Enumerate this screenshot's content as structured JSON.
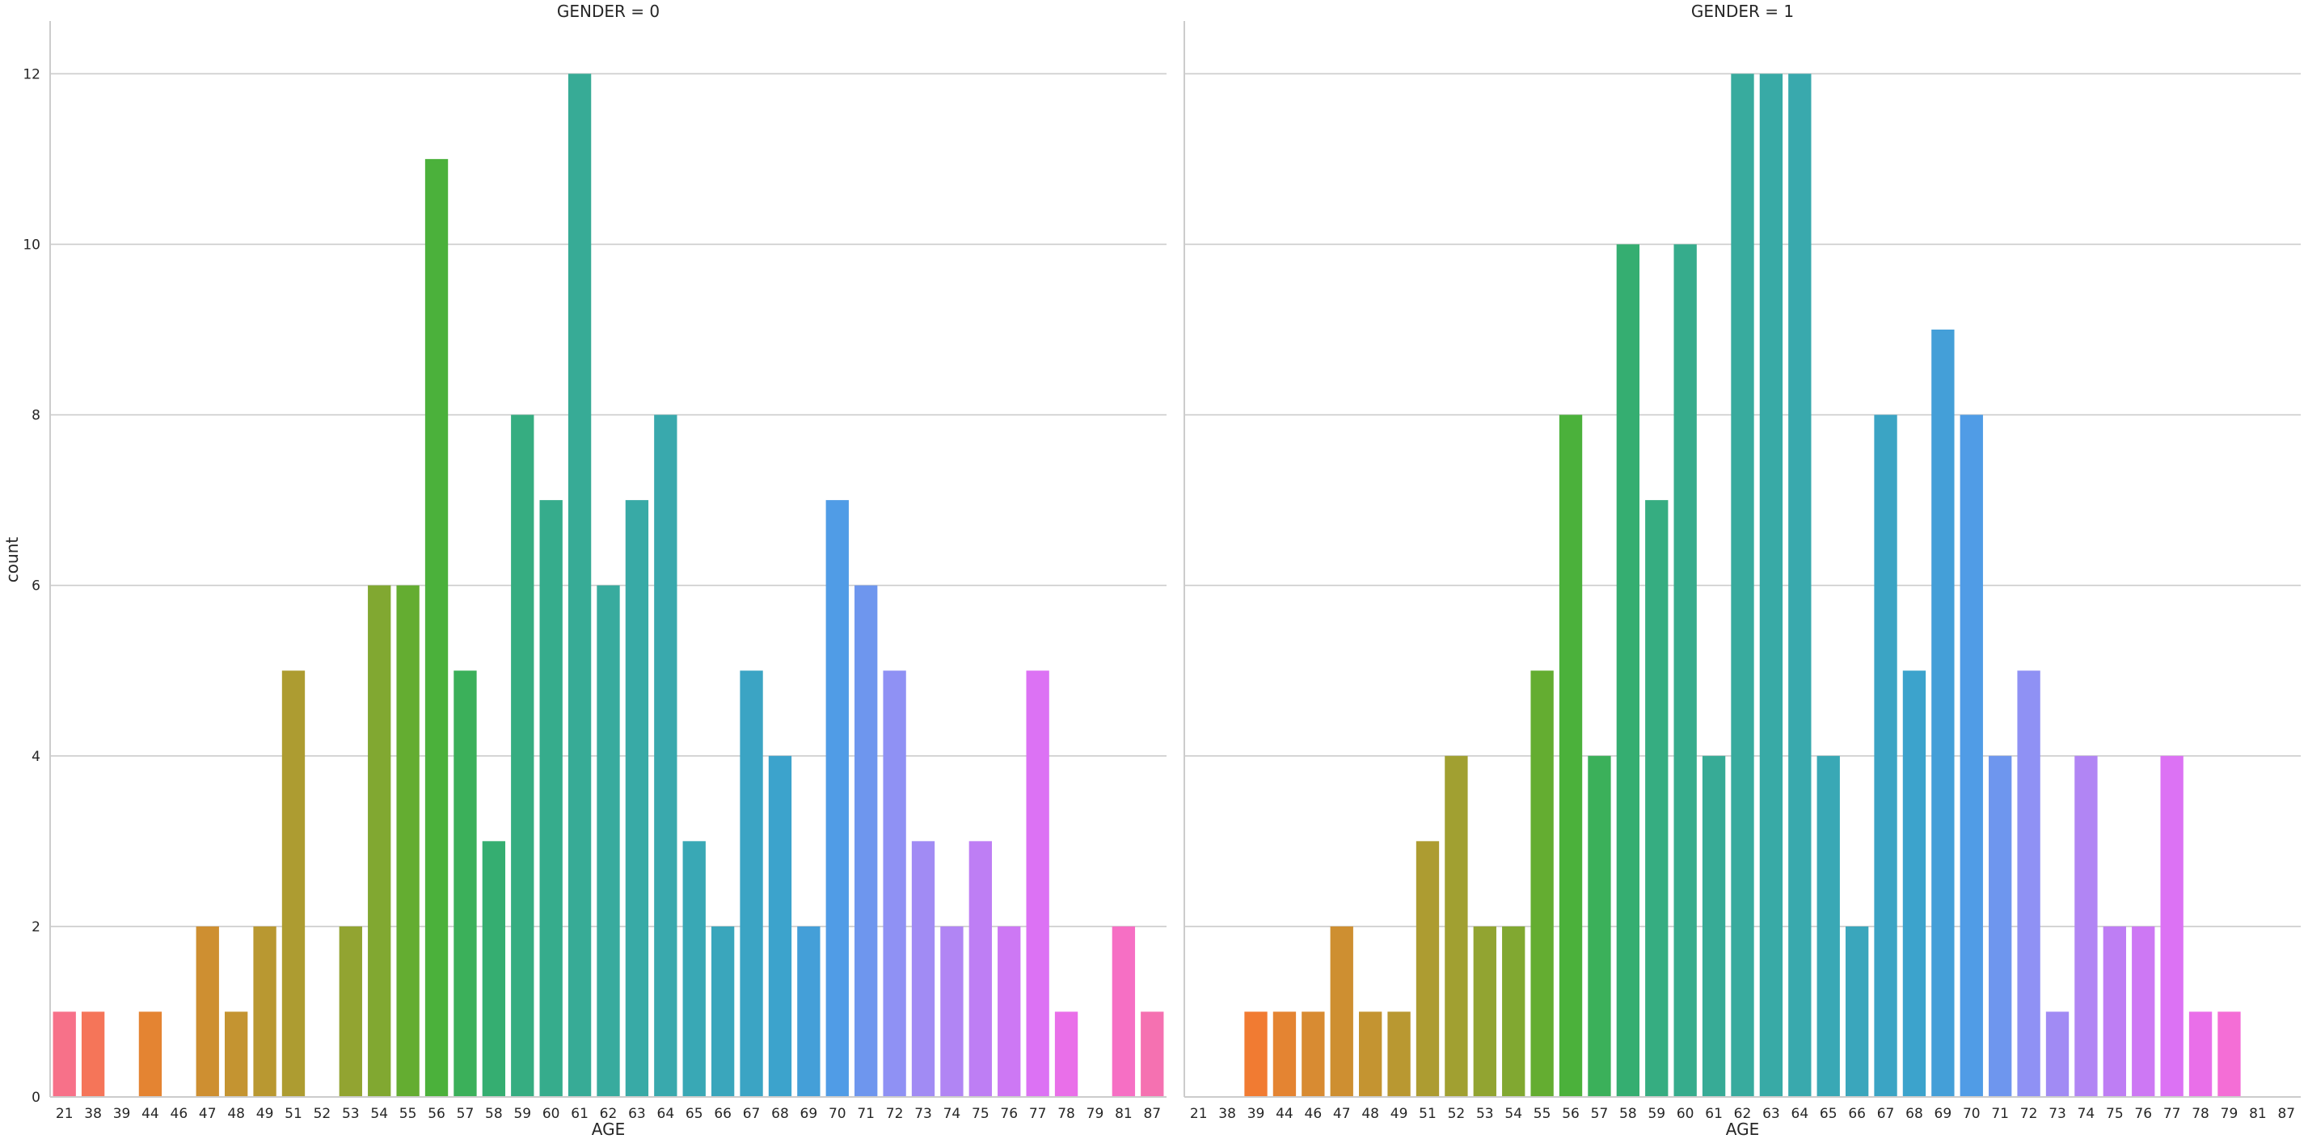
{
  "chart_data": [
    {
      "type": "bar",
      "title": "GENDER = 0",
      "xlabel": "AGE",
      "ylabel": "count",
      "ylim": [
        0,
        12.6
      ],
      "yticks": [
        0,
        2,
        4,
        6,
        8,
        10,
        12
      ],
      "grid": true,
      "categories": [
        "21",
        "38",
        "39",
        "44",
        "46",
        "47",
        "48",
        "49",
        "51",
        "52",
        "53",
        "54",
        "55",
        "56",
        "57",
        "58",
        "59",
        "60",
        "61",
        "62",
        "63",
        "64",
        "65",
        "66",
        "67",
        "68",
        "69",
        "70",
        "71",
        "72",
        "73",
        "74",
        "75",
        "76",
        "77",
        "78",
        "79",
        "81",
        "87"
      ],
      "values": [
        1,
        1,
        0,
        1,
        0,
        2,
        1,
        2,
        5,
        0,
        2,
        6,
        6,
        11,
        5,
        3,
        8,
        7,
        12,
        6,
        7,
        8,
        3,
        2,
        5,
        4,
        2,
        7,
        6,
        5,
        3,
        2,
        3,
        2,
        5,
        1,
        0,
        2,
        1
      ]
    },
    {
      "type": "bar",
      "title": "GENDER = 1",
      "xlabel": "AGE",
      "ylabel": "",
      "ylim": [
        0,
        12.6
      ],
      "yticks": [
        0,
        2,
        4,
        6,
        8,
        10,
        12
      ],
      "grid": true,
      "categories": [
        "21",
        "38",
        "39",
        "44",
        "46",
        "47",
        "48",
        "49",
        "51",
        "52",
        "53",
        "54",
        "55",
        "56",
        "57",
        "58",
        "59",
        "60",
        "61",
        "62",
        "63",
        "64",
        "65",
        "66",
        "67",
        "68",
        "69",
        "70",
        "71",
        "72",
        "73",
        "74",
        "75",
        "76",
        "77",
        "78",
        "79",
        "81",
        "87"
      ],
      "values": [
        0,
        0,
        1,
        1,
        1,
        2,
        1,
        1,
        3,
        4,
        2,
        2,
        5,
        8,
        4,
        10,
        7,
        10,
        4,
        12,
        12,
        12,
        4,
        2,
        8,
        5,
        9,
        8,
        4,
        5,
        1,
        4,
        2,
        2,
        4,
        1,
        1,
        0,
        0
      ]
    }
  ],
  "colors": [
    "#f77189",
    "#f37932",
    "#dc8932",
    "#ca9131",
    "#b69931",
    "#a0a031",
    "#85a731",
    "#50b131",
    "#34af69",
    "#36ad85",
    "#37ab97",
    "#38aaa5",
    "#39a8b3",
    "#3aa5c0",
    "#3ca2cf",
    "#529be8",
    "#8e91f4",
    "#ae86f4",
    "#c67bf4",
    "#e26ff4",
    "#f66ed3",
    "#f571b1"
  ]
}
